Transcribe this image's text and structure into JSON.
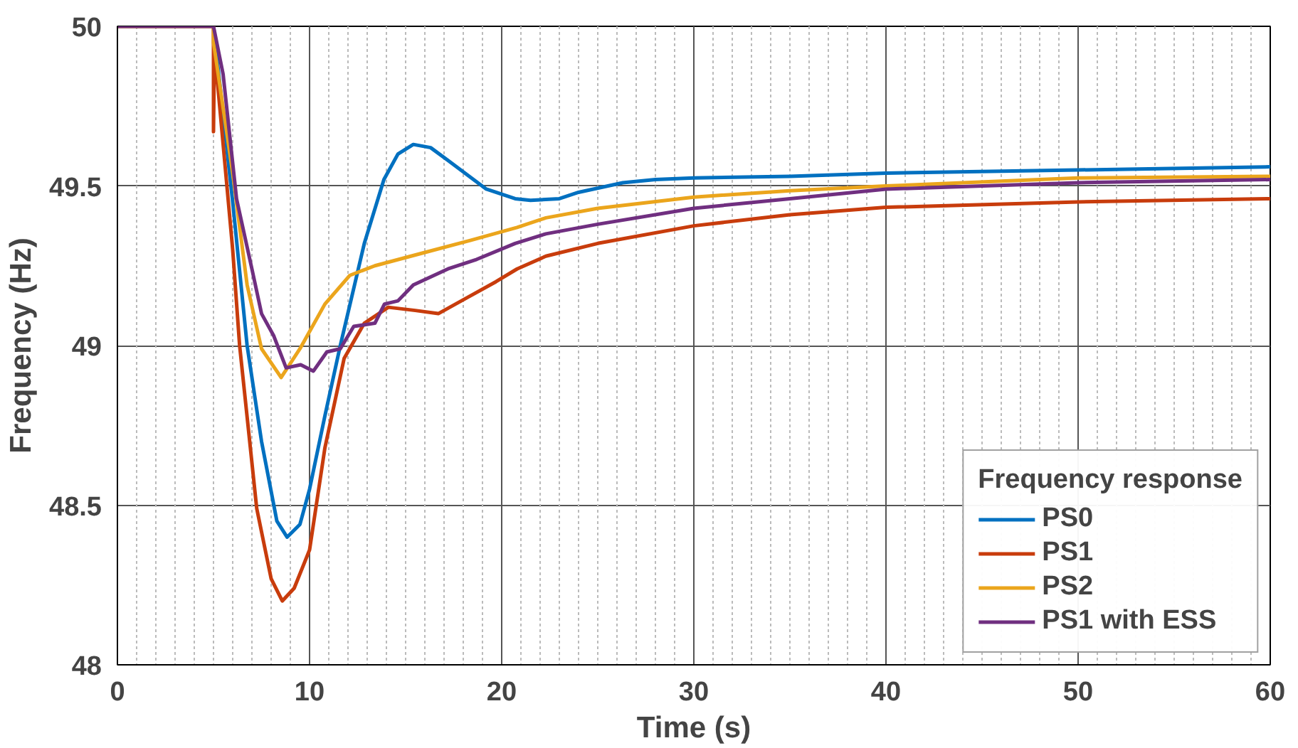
{
  "chart_data": {
    "type": "line",
    "xlabel": "Time (s)",
    "ylabel": "Frequency (Hz)",
    "legend_title": "Frequency response",
    "legend": "bottom right",
    "grid": true,
    "line_style": "solid",
    "xlim": [
      0,
      60
    ],
    "ylim": [
      48,
      50
    ],
    "xticks": [
      0,
      10,
      20,
      30,
      40,
      50,
      60
    ],
    "yticks": [
      48,
      48.5,
      49,
      49.5,
      50
    ],
    "series": [
      {
        "name": "PS0",
        "color": "#0070c0",
        "x": [
          0,
          5,
          6,
          6.75,
          7.5,
          8.3,
          8.83,
          9.5,
          10,
          10.8,
          11.6,
          12.85,
          13.87,
          14.6,
          15.4,
          16.3,
          17.2,
          19.2,
          20.7,
          21.5,
          23,
          24,
          26.3,
          28,
          30,
          35,
          40,
          50,
          60
        ],
        "values": [
          50,
          50,
          49.45,
          49.0,
          48.7,
          48.45,
          48.4,
          48.44,
          48.55,
          48.78,
          49.0,
          49.32,
          49.52,
          49.6,
          49.63,
          49.62,
          49.58,
          49.49,
          49.46,
          49.455,
          49.46,
          49.48,
          49.51,
          49.52,
          49.525,
          49.53,
          49.54,
          49.55,
          49.56
        ]
      },
      {
        "name": "PS1",
        "color": "#c83c0c",
        "x": [
          0,
          5,
          5,
          5.05,
          6,
          6.36,
          7.25,
          8,
          8.58,
          9.2,
          10,
          10.8,
          11.8,
          12.85,
          14.1,
          15.5,
          16.7,
          18.2,
          19.7,
          20.8,
          22.3,
          25,
          30,
          35,
          40,
          50,
          60
        ],
        "values": [
          50,
          50,
          49.67,
          49.93,
          49.3,
          49.0,
          48.49,
          48.27,
          48.2,
          48.24,
          48.36,
          48.68,
          48.96,
          49.07,
          49.12,
          49.11,
          49.1,
          49.15,
          49.2,
          49.24,
          49.28,
          49.32,
          49.375,
          49.41,
          49.433,
          49.45,
          49.46
        ]
      },
      {
        "name": "PS2",
        "color": "#eba51c",
        "x": [
          0,
          5,
          5,
          6,
          6.75,
          7.5,
          8.52,
          9.5,
          10.8,
          12.1,
          13.4,
          15.9,
          18.4,
          20.8,
          22.3,
          25,
          30,
          35,
          40,
          50,
          60
        ],
        "values": [
          50,
          50,
          49.95,
          49.54,
          49.19,
          48.99,
          48.9,
          48.99,
          49.13,
          49.22,
          49.25,
          49.29,
          49.33,
          49.37,
          49.4,
          49.43,
          49.465,
          49.485,
          49.5,
          49.525,
          49.53
        ]
      },
      {
        "name": "PS1 with ESS",
        "color": "#702f80",
        "x": [
          0,
          5,
          5.5,
          6.2,
          7,
          7.5,
          8.14,
          8.78,
          9.54,
          10.2,
          10.9,
          11.6,
          12.3,
          13.4,
          13.9,
          14.6,
          15.4,
          17.2,
          18.7,
          20.7,
          22.3,
          25,
          30,
          35,
          40,
          50,
          60
        ],
        "values": [
          50,
          50,
          49.85,
          49.46,
          49.24,
          49.1,
          49.03,
          48.93,
          48.94,
          48.92,
          48.98,
          48.99,
          49.06,
          49.07,
          49.13,
          49.14,
          49.19,
          49.24,
          49.27,
          49.32,
          49.35,
          49.38,
          49.43,
          49.46,
          49.49,
          49.51,
          49.52
        ]
      }
    ]
  }
}
